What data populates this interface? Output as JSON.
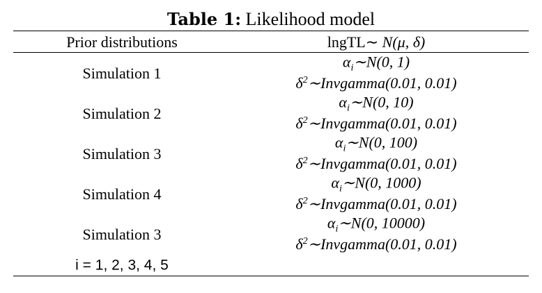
{
  "title": {
    "label": "Table 1:",
    "text": "Likelihood model"
  },
  "table": {
    "header": [
      "Prior distributions",
      [
        "lngTL∼ ",
        "N(μ, δ)"
      ]
    ],
    "rows": [
      {
        "label": "Simulation 1",
        "alpha": [
          "α",
          "i",
          "∼N(0, 1)"
        ],
        "delta": [
          "δ",
          "2",
          "∼Invgamma(0.01, 0.01)"
        ]
      },
      {
        "label": "Simulation 2",
        "alpha": [
          "α",
          "i",
          "∼N(0, 10)"
        ],
        "delta": [
          "δ",
          "2",
          "∼Invgamma(0.01, 0.01)"
        ]
      },
      {
        "label": "Simulation 3",
        "alpha": [
          "α",
          "i",
          "∼N(0, 100)"
        ],
        "delta": [
          "δ",
          "2",
          "∼Invgamma(0.01, 0.01)"
        ]
      },
      {
        "label": "Simulation 4",
        "alpha": [
          "α",
          "i",
          "∼N(0, 1000)"
        ],
        "delta": [
          "δ",
          "2",
          "∼Invgamma(0.01, 0.01)"
        ]
      },
      {
        "label": "Simulation 3",
        "alpha": [
          "α",
          "i",
          "∼N(0, 10000)"
        ],
        "delta": [
          "δ",
          "2",
          "∼Invgamma(0.01, 0.01)"
        ]
      }
    ],
    "footer": "i = 1, 2, 3, 4, 5"
  }
}
